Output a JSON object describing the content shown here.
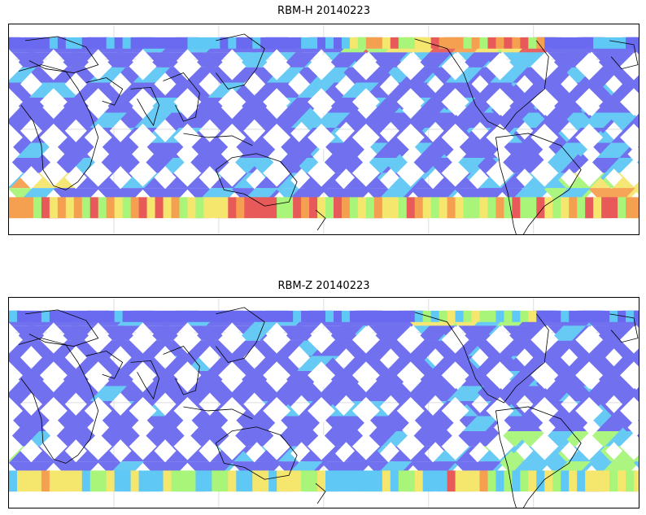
{
  "panels": [
    {
      "title": "RBM-H 20140223",
      "variant": "H"
    },
    {
      "title": "RBM-Z 20140223",
      "variant": "Z"
    }
  ],
  "colors": {
    "track_low": "#6a6af0",
    "track_mid": "#5fc8f5",
    "track_high_green": "#a8f57a",
    "track_high_yellow": "#f5e66e",
    "track_high_orange": "#f5a050",
    "track_max": "#e85a5a",
    "coastline": "#000000",
    "gridline": "#c8c8c8"
  },
  "map": {
    "projection": "equirectangular",
    "grid": true,
    "colormap": "jet"
  }
}
